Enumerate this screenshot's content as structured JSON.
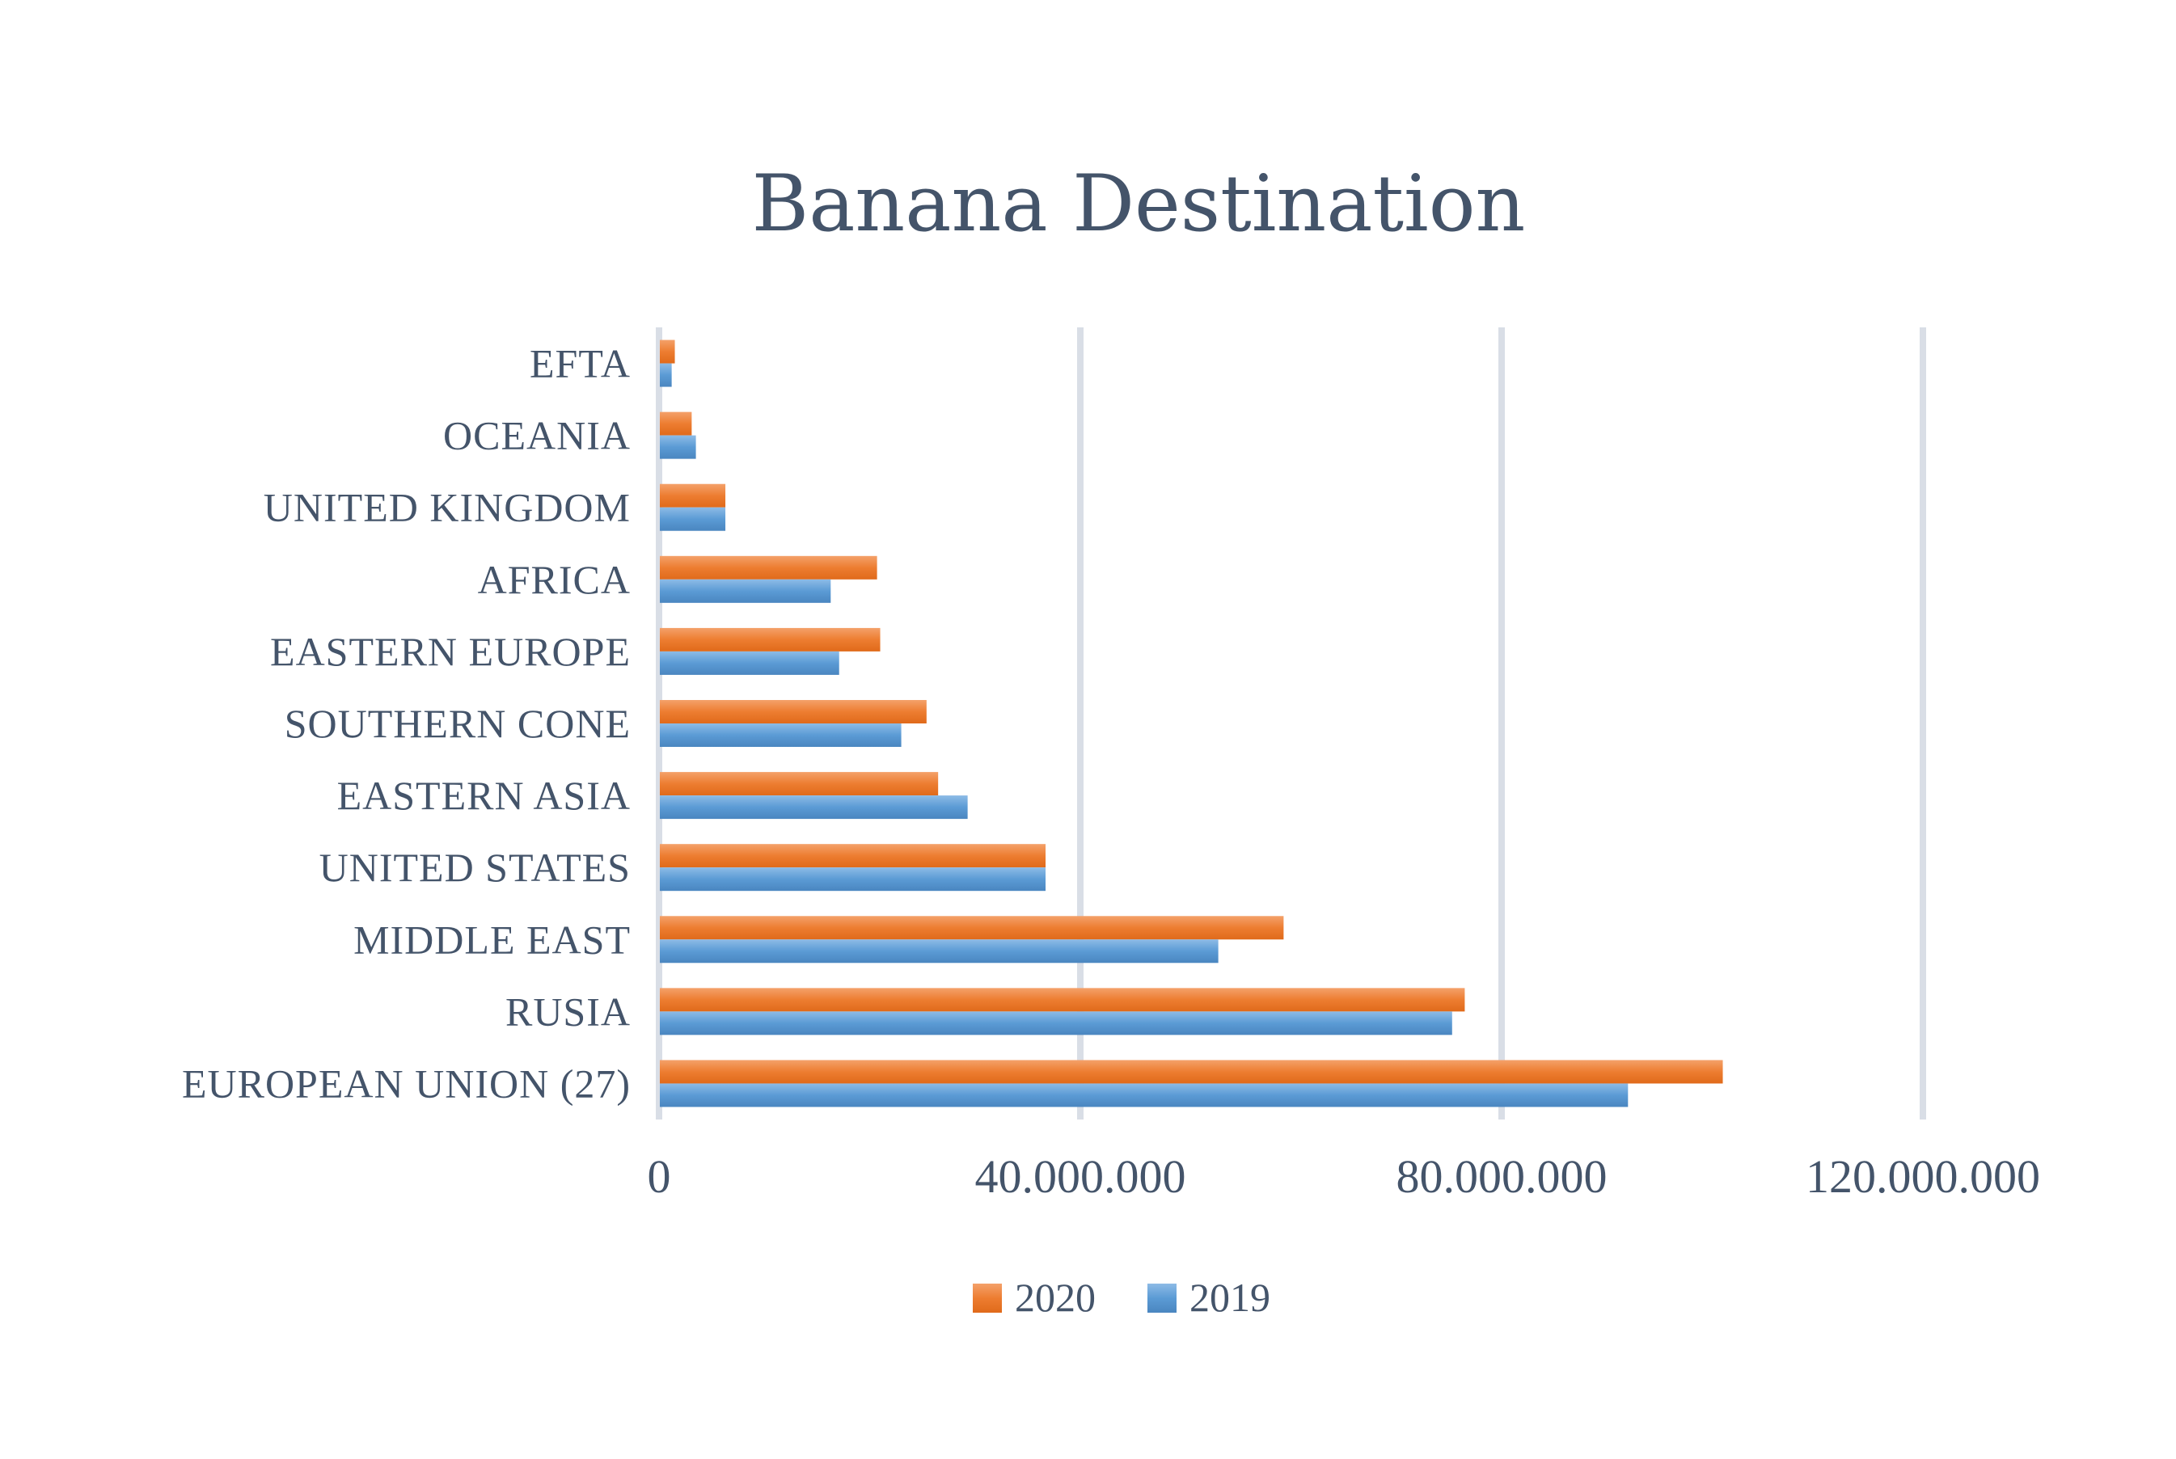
{
  "chart_data": {
    "type": "bar",
    "orientation": "horizontal",
    "title": "Banana Destination",
    "categories": [
      "EUROPEAN UNION (27)",
      "RUSIA",
      "MIDDLE EAST",
      "UNITED STATES",
      "EASTERN ASIA",
      "SOUTHERN CONE",
      "EASTERN EUROPE",
      "AFRICA",
      "UNITED KINGDOM",
      "OCEANIA",
      "EFTA"
    ],
    "series": [
      {
        "name": "2020",
        "color": "#ED7D31",
        "values": [
          101000000,
          76500000,
          59300000,
          36700000,
          26500000,
          25400000,
          21000000,
          20700000,
          6300000,
          3100000,
          1500000
        ]
      },
      {
        "name": "2019",
        "color": "#5B9BD5",
        "values": [
          92000000,
          75300000,
          53100000,
          36700000,
          29300000,
          23000000,
          17100000,
          16300000,
          6300000,
          3500000,
          1200000
        ]
      }
    ],
    "xlim": [
      0,
      120000000
    ],
    "xticks": [
      {
        "value": 0,
        "label": "0"
      },
      {
        "value": 40000000,
        "label": "40.000.000"
      },
      {
        "value": 80000000,
        "label": "80.000.000"
      },
      {
        "value": 120000000,
        "label": "120.000.000"
      }
    ],
    "grid": true,
    "legend_position": "bottom"
  }
}
